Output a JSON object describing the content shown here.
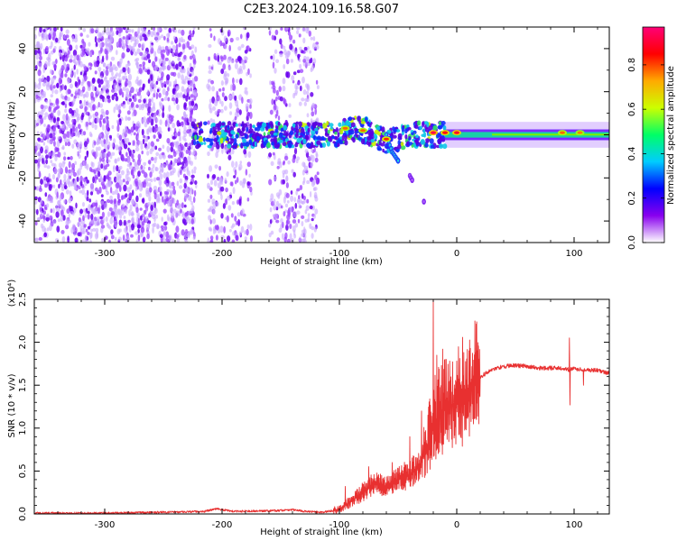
{
  "figure": {
    "title": "C2E3.2024.109.16.58.G07"
  },
  "chart_data": [
    {
      "type": "heatmap",
      "xlabel": "Height of straight line (km)",
      "ylabel": "Frequency (Hz)",
      "xlim": [
        -360,
        130
      ],
      "ylim": [
        -50,
        50
      ],
      "x_ticks": [
        -300,
        -200,
        -100,
        0,
        100
      ],
      "x_tick_labels": [
        "-300",
        "-200",
        "-100",
        "0",
        "100"
      ],
      "y_ticks": [
        -40,
        -20,
        0,
        20,
        40
      ],
      "y_tick_labels": [
        "-40",
        "-20",
        "0",
        "20",
        "40"
      ],
      "colorbar": {
        "label": "Normalized spectral amplitude",
        "range": [
          0,
          0.97
        ],
        "ticks": [
          0.0,
          0.2,
          0.4,
          0.6,
          0.8
        ],
        "tick_labels": [
          "0.0",
          "0.2",
          "0.4",
          "0.6",
          "0.8"
        ],
        "colors": [
          "#ffffff",
          "#8800ee",
          "#0000ff",
          "#00ccff",
          "#00ff66",
          "#ccff00",
          "#ffaa00",
          "#ff0000",
          "#ff0077"
        ]
      },
      "regions": [
        {
          "name": "noise-scatter",
          "x_range": [
            -360,
            -105
          ],
          "y_range": [
            -50,
            50
          ],
          "level": 0.15
        },
        {
          "name": "gap",
          "x_range": [
            -222,
            -212
          ],
          "y_range": [
            -50,
            50
          ],
          "level": 0.0
        },
        {
          "name": "gap",
          "x_range": [
            -175,
            -160
          ],
          "y_range": [
            -50,
            50
          ],
          "level": 0.0
        },
        {
          "name": "gap",
          "x_range": [
            -118,
            -105
          ],
          "y_range": [
            -50,
            50
          ],
          "level": 0.0
        },
        {
          "name": "carrier-band",
          "x_range": [
            -225,
            130
          ],
          "center_hz": 0,
          "halfwidth_hz": 4,
          "level": 0.5
        }
      ],
      "features": [
        {
          "name": "descending-trace",
          "points": [
            [
              -60,
              0
            ],
            [
              -55,
              -8
            ],
            [
              -50,
              -12
            ]
          ]
        },
        {
          "name": "isolated-blob",
          "points": [
            [
              -40,
              -19
            ],
            [
              -38,
              -21
            ]
          ]
        },
        {
          "name": "isolated-blob",
          "points": [
            [
              -28,
              -31
            ]
          ]
        }
      ],
      "peaks": [
        {
          "x": -95,
          "y": 3,
          "level": 0.8
        },
        {
          "x": -80,
          "y": 2,
          "level": 0.8
        },
        {
          "x": -60,
          "y": -2,
          "level": 0.85
        },
        {
          "x": -20,
          "y": 1,
          "level": 0.95
        },
        {
          "x": -10,
          "y": 1,
          "level": 0.9
        },
        {
          "x": 0,
          "y": 1,
          "level": 0.92
        },
        {
          "x": 90,
          "y": 1,
          "level": 0.8
        },
        {
          "x": 105,
          "y": 1,
          "level": 0.78
        }
      ]
    },
    {
      "type": "line",
      "xlabel": "Height of straight line (km)",
      "ylabel": "SNR (10 * v/v)",
      "y_multiplier_label": "(x10⁴)",
      "xlim": [
        -360,
        130
      ],
      "ylim": [
        0,
        2.5
      ],
      "x_ticks": [
        -300,
        -200,
        -100,
        0,
        100
      ],
      "x_tick_labels": [
        "-300",
        "-200",
        "-100",
        "0",
        "100"
      ],
      "y_ticks": [
        0.0,
        0.5,
        1.0,
        1.5,
        2.0,
        2.5
      ],
      "y_tick_labels": [
        "0.0",
        "0.5",
        "1.0",
        "1.5",
        "2.0",
        "2.5"
      ],
      "line_color": "#e83030",
      "series": [
        {
          "x": [
            -360,
            -300,
            -250,
            -215,
            -205,
            -190,
            -150,
            -140,
            -130,
            -115,
            -100,
            -90,
            -80,
            -70,
            -60,
            -50,
            -40,
            -30,
            -25,
            -20,
            -15,
            -10,
            -5,
            0,
            10,
            20,
            30,
            40,
            50,
            60,
            70,
            80,
            90,
            95,
            100,
            110,
            120,
            130
          ],
          "values": [
            0.01,
            0.01,
            0.02,
            0.03,
            0.06,
            0.03,
            0.04,
            0.05,
            0.03,
            0.02,
            0.05,
            0.15,
            0.25,
            0.35,
            0.3,
            0.4,
            0.45,
            0.6,
            0.8,
            1.05,
            1.15,
            1.25,
            1.25,
            1.3,
            1.45,
            1.6,
            1.68,
            1.72,
            1.73,
            1.72,
            1.7,
            1.7,
            1.7,
            1.68,
            1.69,
            1.68,
            1.67,
            1.64
          ],
          "spikes": [
            {
              "x": -20,
              "value": 2.5
            },
            {
              "x": -17,
              "value": 1.85
            },
            {
              "x": -12,
              "value": 1.92
            },
            {
              "x": -9,
              "value": 1.8
            },
            {
              "x": -30,
              "value": 1.2
            },
            {
              "x": -40,
              "value": 0.9
            },
            {
              "x": -55,
              "value": 0.6
            },
            {
              "x": -75,
              "value": 0.55
            },
            {
              "x": -95,
              "value": 0.32
            },
            {
              "x": 96,
              "value": 2.05
            },
            {
              "x": 96.5,
              "value": 1.27
            },
            {
              "x": 108,
              "value": 1.5
            }
          ]
        }
      ]
    }
  ]
}
